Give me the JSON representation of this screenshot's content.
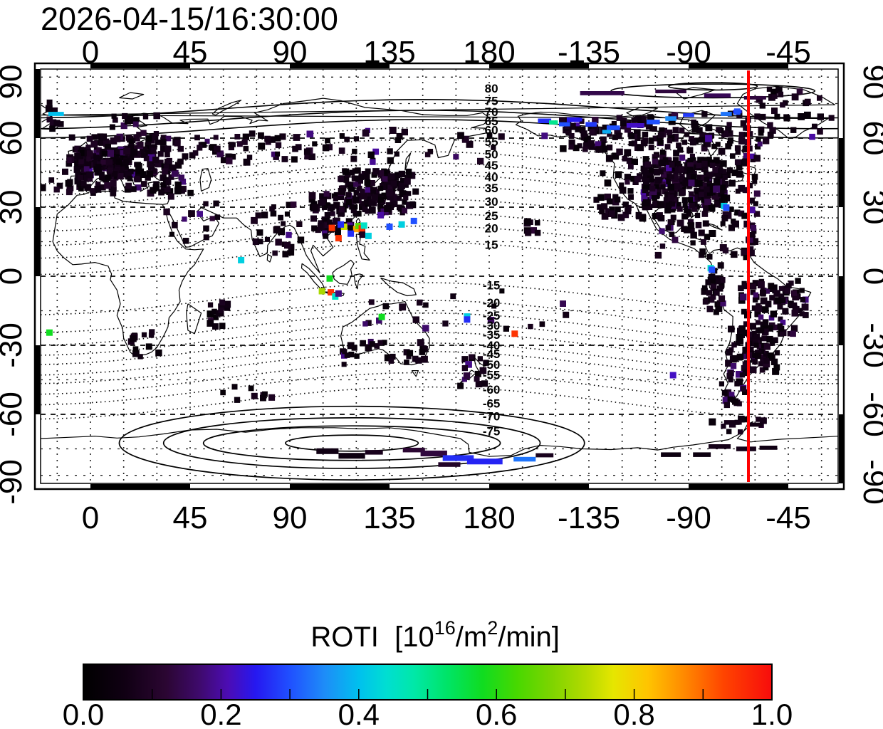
{
  "chart_data": {
    "type": "scatter",
    "title": "2026-04-15/16:30:00",
    "map": {
      "projection": "equirectangular",
      "lon_min": -22.5,
      "lon_max": 337.5,
      "lat_min": -90,
      "lat_max": 90,
      "grid_step_deg": 15,
      "lon_ticks": [
        {
          "lon": 0,
          "label": "0"
        },
        {
          "lon": 45,
          "label": "45"
        },
        {
          "lon": 90,
          "label": "90"
        },
        {
          "lon": 135,
          "label": "135"
        },
        {
          "lon": 180,
          "label": "180"
        },
        {
          "lon": 225,
          "label": "-135"
        },
        {
          "lon": 270,
          "label": "-90"
        },
        {
          "lon": 315,
          "label": "-45"
        }
      ],
      "lat_ticks": [
        {
          "lat": 90,
          "label": "90"
        },
        {
          "lat": 60,
          "label": "60"
        },
        {
          "lat": 30,
          "label": "30"
        },
        {
          "lat": 0,
          "label": "0"
        },
        {
          "lat": -30,
          "label": "-30"
        },
        {
          "lat": -60,
          "label": "-60"
        },
        {
          "lat": -90,
          "label": "-90"
        }
      ],
      "red_meridian_lon": -63,
      "red_meridian_color": "#ff0000"
    },
    "magnetic_contours": {
      "label_lon": 181,
      "labels": [
        {
          "value": "80",
          "m": 80,
          "lat": 81.7
        },
        {
          "value": "75",
          "m": 75,
          "lat": 76.2
        },
        {
          "value": "70",
          "m": 70,
          "lat": 71.5
        },
        {
          "value": "65",
          "m": 65,
          "lat": 67.5
        },
        {
          "value": "60",
          "m": 60,
          "lat": 63.5
        },
        {
          "value": "55",
          "m": 55,
          "lat": 58.5
        },
        {
          "value": "50",
          "m": 50,
          "lat": 53.1
        },
        {
          "value": "45",
          "m": 45,
          "lat": 48.2
        },
        {
          "value": "40",
          "m": 40,
          "lat": 43.2
        },
        {
          "value": "35",
          "m": 35,
          "lat": 38.3
        },
        {
          "value": "30",
          "m": 30,
          "lat": 32.5
        },
        {
          "value": "25",
          "m": 25,
          "lat": 26.3
        },
        {
          "value": "20",
          "m": 20,
          "lat": 20.8
        },
        {
          "value": "15",
          "m": 15,
          "lat": 13.7
        },
        {
          "value": "-15",
          "m": -15,
          "lat": -3.8
        },
        {
          "value": "-20",
          "m": -20,
          "lat": -11.5
        },
        {
          "value": "-25",
          "m": -25,
          "lat": -17.0
        },
        {
          "value": "-30",
          "m": -30,
          "lat": -21.4
        },
        {
          "value": "-35",
          "m": -35,
          "lat": -25.4
        },
        {
          "value": "-40",
          "m": -40,
          "lat": -30.0
        },
        {
          "value": "-45",
          "m": -45,
          "lat": -33.7
        },
        {
          "value": "-50",
          "m": -50,
          "lat": -38.3
        },
        {
          "value": "-55",
          "m": -55,
          "lat": -42.9
        },
        {
          "value": "-60",
          "m": -60,
          "lat": -49.1
        },
        {
          "value": "-65",
          "m": -65,
          "lat": -55.2
        },
        {
          "value": "-70",
          "m": -70,
          "lat": -60.8
        },
        {
          "value": "-75",
          "m": -75,
          "lat": -67.2
        }
      ]
    },
    "colorbar": {
      "title_pre": "ROTI  [10",
      "title_sup1": "16",
      "title_mid": "/m",
      "title_sup2": "2",
      "title_post": "/min]",
      "ticks": [
        "0.0",
        "0.2",
        "0.4",
        "0.6",
        "0.8",
        "1.0"
      ],
      "tick_values": [
        0.0,
        0.2,
        0.4,
        0.6,
        0.8,
        1.0
      ],
      "minor_tick_step": 0.1,
      "range": [
        0.0,
        1.0
      ],
      "gradient": [
        {
          "pos": 0.0,
          "color": "#000000"
        },
        {
          "pos": 0.06,
          "color": "#100013"
        },
        {
          "pos": 0.12,
          "color": "#2b0632"
        },
        {
          "pos": 0.17,
          "color": "#3f0a6e"
        },
        {
          "pos": 0.21,
          "color": "#4c0cb4"
        },
        {
          "pos": 0.25,
          "color": "#2618f0"
        },
        {
          "pos": 0.3,
          "color": "#2050ff"
        },
        {
          "pos": 0.35,
          "color": "#1e8cf8"
        },
        {
          "pos": 0.4,
          "color": "#00c0ee"
        },
        {
          "pos": 0.44,
          "color": "#00ded2"
        },
        {
          "pos": 0.48,
          "color": "#00e8a8"
        },
        {
          "pos": 0.53,
          "color": "#00e465"
        },
        {
          "pos": 0.58,
          "color": "#10dc20"
        },
        {
          "pos": 0.63,
          "color": "#48d800"
        },
        {
          "pos": 0.68,
          "color": "#7ed400"
        },
        {
          "pos": 0.73,
          "color": "#b4da00"
        },
        {
          "pos": 0.77,
          "color": "#e6e600"
        },
        {
          "pos": 0.82,
          "color": "#ffc400"
        },
        {
          "pos": 0.87,
          "color": "#ff8c00"
        },
        {
          "pos": 0.93,
          "color": "#ff4400"
        },
        {
          "pos": 1.0,
          "color": "#f80c0c"
        }
      ]
    },
    "stations": {
      "clusters": [
        {
          "name": "europe",
          "lon": [
            -10,
            42
          ],
          "lat": [
            36,
            61
          ],
          "n": 200
        },
        {
          "name": "europe-core",
          "lon": [
            -6,
            22
          ],
          "lat": [
            42,
            55
          ],
          "n": 150
        },
        {
          "name": "scandinavia",
          "lon": [
            8,
            30
          ],
          "lat": [
            57,
            70
          ],
          "n": 22
        },
        {
          "name": "west-russia",
          "lon": [
            42,
            95
          ],
          "lat": [
            49,
            62
          ],
          "n": 45
        },
        {
          "name": "siberia",
          "lon": [
            95,
            142
          ],
          "lat": [
            49,
            64
          ],
          "n": 28
        },
        {
          "name": "china",
          "lon": [
            100,
            113
          ],
          "lat": [
            20,
            36
          ],
          "n": 45
        },
        {
          "name": "east-asia",
          "lon": [
            113,
            147
          ],
          "lat": [
            27,
            46
          ],
          "n": 160
        },
        {
          "name": "south-china-coast",
          "lon": [
            104,
            123
          ],
          "lat": [
            17,
            24
          ],
          "n": 18
        },
        {
          "name": "india",
          "lon": [
            72,
            96
          ],
          "lat": [
            6,
            32
          ],
          "n": 28
        },
        {
          "name": "middle-east",
          "lon": [
            34,
            60
          ],
          "lat": [
            14,
            42
          ],
          "n": 18
        },
        {
          "name": "atlantic-islands",
          "lon": [
            -22,
            -10
          ],
          "lat": [
            36,
            46
          ],
          "n": 5
        },
        {
          "name": "south-africa",
          "lon": [
            18,
            32
          ],
          "lat": [
            -35,
            -24
          ],
          "n": 12
        },
        {
          "name": "reunion",
          "lon": [
            54,
            63
          ],
          "lat": [
            -22,
            -11
          ],
          "n": 16
        },
        {
          "name": "kerguelen",
          "lon": [
            58,
            82
          ],
          "lat": [
            -54,
            -44
          ],
          "n": 9
        },
        {
          "name": "australia-south",
          "lon": [
            113,
            154
          ],
          "lat": [
            -39,
            -27
          ],
          "n": 30
        },
        {
          "name": "australia-north",
          "lon": [
            122,
            153
          ],
          "lat": [
            -25,
            -11
          ],
          "n": 10
        },
        {
          "name": "new-zealand",
          "lon": [
            166,
            179
          ],
          "lat": [
            -48,
            -35
          ],
          "n": 16
        },
        {
          "name": "pacific-islands",
          "lon": [
            155,
            215
          ],
          "lat": [
            -25,
            -5
          ],
          "n": 10
        },
        {
          "name": "hawaii",
          "lon": [
            197,
            207
          ],
          "lat": [
            18,
            24
          ],
          "n": 8
        },
        {
          "name": "north-america",
          "lon": [
            228,
            302
          ],
          "lat": [
            25,
            62
          ],
          "n": 210
        },
        {
          "name": "usa-core",
          "lon": [
            250,
            287
          ],
          "lat": [
            29,
            51
          ],
          "n": 240
        },
        {
          "name": "central-america",
          "lon": [
            255,
            300
          ],
          "lat": [
            8,
            25
          ],
          "n": 50
        },
        {
          "name": "alaska",
          "lon": [
            212,
            232
          ],
          "lat": [
            55,
            68
          ],
          "n": 40
        },
        {
          "name": "canada-north",
          "lon": [
            232,
            268
          ],
          "lat": [
            58,
            70
          ],
          "n": 45
        },
        {
          "name": "canada-east",
          "lon": [
            268,
            305
          ],
          "lat": [
            55,
            72
          ],
          "n": 40
        },
        {
          "name": "greenland",
          "lon": [
            300,
            336
          ],
          "lat": [
            60,
            82
          ],
          "n": 35
        },
        {
          "name": "greenland-west-edge",
          "lon": [
            -22.5,
            -12
          ],
          "lat": [
            64,
            76
          ],
          "n": 8
        },
        {
          "name": "brazil",
          "lon": [
            293,
            323
          ],
          "lat": [
            -25,
            -2
          ],
          "n": 95
        },
        {
          "name": "argentina",
          "lon": [
            288,
            310
          ],
          "lat": [
            -42,
            -22
          ],
          "n": 85
        },
        {
          "name": "andes-north",
          "lon": [
            277,
            286
          ],
          "lat": [
            -16,
            6
          ],
          "n": 30
        },
        {
          "name": "patagonia",
          "lon": [
            284,
            296
          ],
          "lat": [
            -56,
            -42
          ],
          "n": 22
        },
        {
          "name": "antarctic-peninsula",
          "lon": [
            280,
            310
          ],
          "lat": [
            -68,
            -62
          ],
          "n": 12
        },
        {
          "name": "kamchatka",
          "lon": [
            145,
            190
          ],
          "lat": [
            49,
            62
          ],
          "n": 10
        }
      ],
      "streaks": [
        {
          "lon": -15.5,
          "lat": 70.5,
          "w": 7,
          "h": 1.8,
          "v": 0.4
        },
        {
          "lon": 231,
          "lat": 79.5,
          "w": 20,
          "h": 1.8,
          "v": 0.14
        },
        {
          "lon": 262,
          "lat": 80.3,
          "w": 14,
          "h": 1.6,
          "v": 0.13
        },
        {
          "lon": 283,
          "lat": 78.5,
          "w": 12,
          "h": 1.8,
          "v": 0.15
        },
        {
          "lon": 300,
          "lat": 77.5,
          "w": 10,
          "h": 1.5,
          "v": 0.13
        },
        {
          "lon": 218,
          "lat": 68,
          "w": 6,
          "h": 2,
          "v": 0.25
        },
        {
          "lon": 226,
          "lat": 66,
          "w": 5,
          "h": 2,
          "v": 0.28
        },
        {
          "lon": 236,
          "lat": 64.5,
          "w": 6,
          "h": 2,
          "v": 0.3
        },
        {
          "lon": 233,
          "lat": 62.8,
          "w": 4,
          "h": 1.6,
          "v": 0.38
        },
        {
          "lon": 246,
          "lat": 65.5,
          "w": 8,
          "h": 2,
          "v": 0.22
        },
        {
          "lon": 254,
          "lat": 67,
          "w": 6,
          "h": 2,
          "v": 0.3
        },
        {
          "lon": 262,
          "lat": 68.5,
          "w": 5,
          "h": 2,
          "v": 0.35
        },
        {
          "lon": 270,
          "lat": 70,
          "w": 5,
          "h": 1.6,
          "v": 0.28
        },
        {
          "lon": 287,
          "lat": 70.5,
          "w": 5,
          "h": 1.8,
          "v": 0.33
        },
        {
          "lon": 292,
          "lat": 71.5,
          "w": 4,
          "h": 1.5,
          "v": 0.26
        },
        {
          "lon": 205,
          "lat": 67.5,
          "w": 6,
          "h": 2,
          "v": 0.27
        },
        {
          "lon": 209,
          "lat": 66.8,
          "w": 4,
          "h": 1.8,
          "v": 0.5
        },
        {
          "lon": 214,
          "lat": 66,
          "w": 5,
          "h": 1.8,
          "v": 0.3
        },
        {
          "lon": 220,
          "lat": 68,
          "w": 4,
          "h": 1.5,
          "v": 0.25
        },
        {
          "lon": 107,
          "lat": -76,
          "w": 10,
          "h": 2.5,
          "v": 0.06
        },
        {
          "lon": 118,
          "lat": -78,
          "w": 12,
          "h": 2.5,
          "v": 0.05
        },
        {
          "lon": 128,
          "lat": -76.5,
          "w": 8,
          "h": 2,
          "v": 0.08
        },
        {
          "lon": 146,
          "lat": -75.5,
          "w": 10,
          "h": 2,
          "v": 0.12
        },
        {
          "lon": 155,
          "lat": -77,
          "w": 12,
          "h": 2.5,
          "v": 0.13
        },
        {
          "lon": 166,
          "lat": -79,
          "w": 14,
          "h": 2.5,
          "v": 0.27
        },
        {
          "lon": 178,
          "lat": -80.5,
          "w": 16,
          "h": 2.5,
          "v": 0.26
        },
        {
          "lon": 196,
          "lat": -79.5,
          "w": 10,
          "h": 2,
          "v": 0.33
        },
        {
          "lon": 162,
          "lat": -81.8,
          "w": 10,
          "h": 2,
          "v": 0.1
        },
        {
          "lon": 205,
          "lat": -77.8,
          "w": 8,
          "h": 1.8,
          "v": 0.08
        },
        {
          "lon": 262,
          "lat": -77.5,
          "w": 9,
          "h": 2,
          "v": 0.05
        },
        {
          "lon": 276,
          "lat": -77.5,
          "w": 8,
          "h": 2,
          "v": 0.05
        },
        {
          "lon": 290,
          "lat": -63.5,
          "w": 8,
          "h": 2,
          "v": 0.07
        },
        {
          "lon": 300,
          "lat": -64.5,
          "w": 7,
          "h": 1.8,
          "v": 0.06
        },
        {
          "lon": 284,
          "lat": -74,
          "w": 10,
          "h": 2,
          "v": 0.07
        },
        {
          "lon": 296,
          "lat": -75,
          "w": 9,
          "h": 2,
          "v": 0.07
        },
        {
          "lon": 306,
          "lat": -74.5,
          "w": 8,
          "h": 1.8,
          "v": 0.06
        }
      ],
      "highlights": [
        {
          "lon": 109,
          "lat": 21,
          "v": 0.95
        },
        {
          "lon": 112,
          "lat": 16.5,
          "v": 0.95
        },
        {
          "lon": 114.5,
          "lat": 21.5,
          "v": 0.75
        },
        {
          "lon": 120,
          "lat": 20.5,
          "v": 0.85
        },
        {
          "lon": 121,
          "lat": 21.8,
          "v": 0.65
        },
        {
          "lon": 122.5,
          "lat": 20.8,
          "v": 0.95
        },
        {
          "lon": 123.5,
          "lat": 22,
          "v": 0.45
        },
        {
          "lon": 117.5,
          "lat": 18.5,
          "v": 0.27
        },
        {
          "lon": 125.5,
          "lat": 17.5,
          "v": 0.42
        },
        {
          "lon": 113,
          "lat": 22.5,
          "v": 0.27
        },
        {
          "lon": 131,
          "lat": 26.5,
          "v": 0.2
        },
        {
          "lon": 135,
          "lat": 21.5,
          "v": 0.3
        },
        {
          "lon": 140.5,
          "lat": 22.5,
          "v": 0.42
        },
        {
          "lon": 146,
          "lat": 24,
          "v": 0.3
        },
        {
          "lon": 108,
          "lat": -1,
          "v": 0.58
        },
        {
          "lon": 104.5,
          "lat": -6.5,
          "v": 0.72
        },
        {
          "lon": 108.5,
          "lat": -7,
          "v": 0.95
        },
        {
          "lon": 110.5,
          "lat": -8.8,
          "v": 0.45
        },
        {
          "lon": 112,
          "lat": -7.5,
          "v": 0.18
        },
        {
          "lon": 131.5,
          "lat": -17.7,
          "v": 0.58
        },
        {
          "lon": 170,
          "lat": -17.5,
          "v": 0.42
        },
        {
          "lon": 170,
          "lat": -18.8,
          "v": 0.27
        },
        {
          "lon": 191.5,
          "lat": -25,
          "v": 0.95
        },
        {
          "lon": -18.5,
          "lat": -24.5,
          "v": 0.58
        },
        {
          "lon": 68,
          "lat": 7,
          "v": 0.42
        },
        {
          "lon": 286,
          "lat": 30.5,
          "v": 0.42
        },
        {
          "lon": 287,
          "lat": 29.8,
          "v": 0.3
        },
        {
          "lon": 280,
          "lat": 3.5,
          "v": 0.45
        },
        {
          "lon": 280.5,
          "lat": 2.8,
          "v": 0.3
        },
        {
          "lon": 263,
          "lat": -43,
          "v": 0.22
        },
        {
          "lon": 292,
          "lat": 71.5,
          "v": 0.3
        },
        {
          "lon": 205,
          "lat": 61,
          "v": 0.18
        }
      ]
    }
  }
}
